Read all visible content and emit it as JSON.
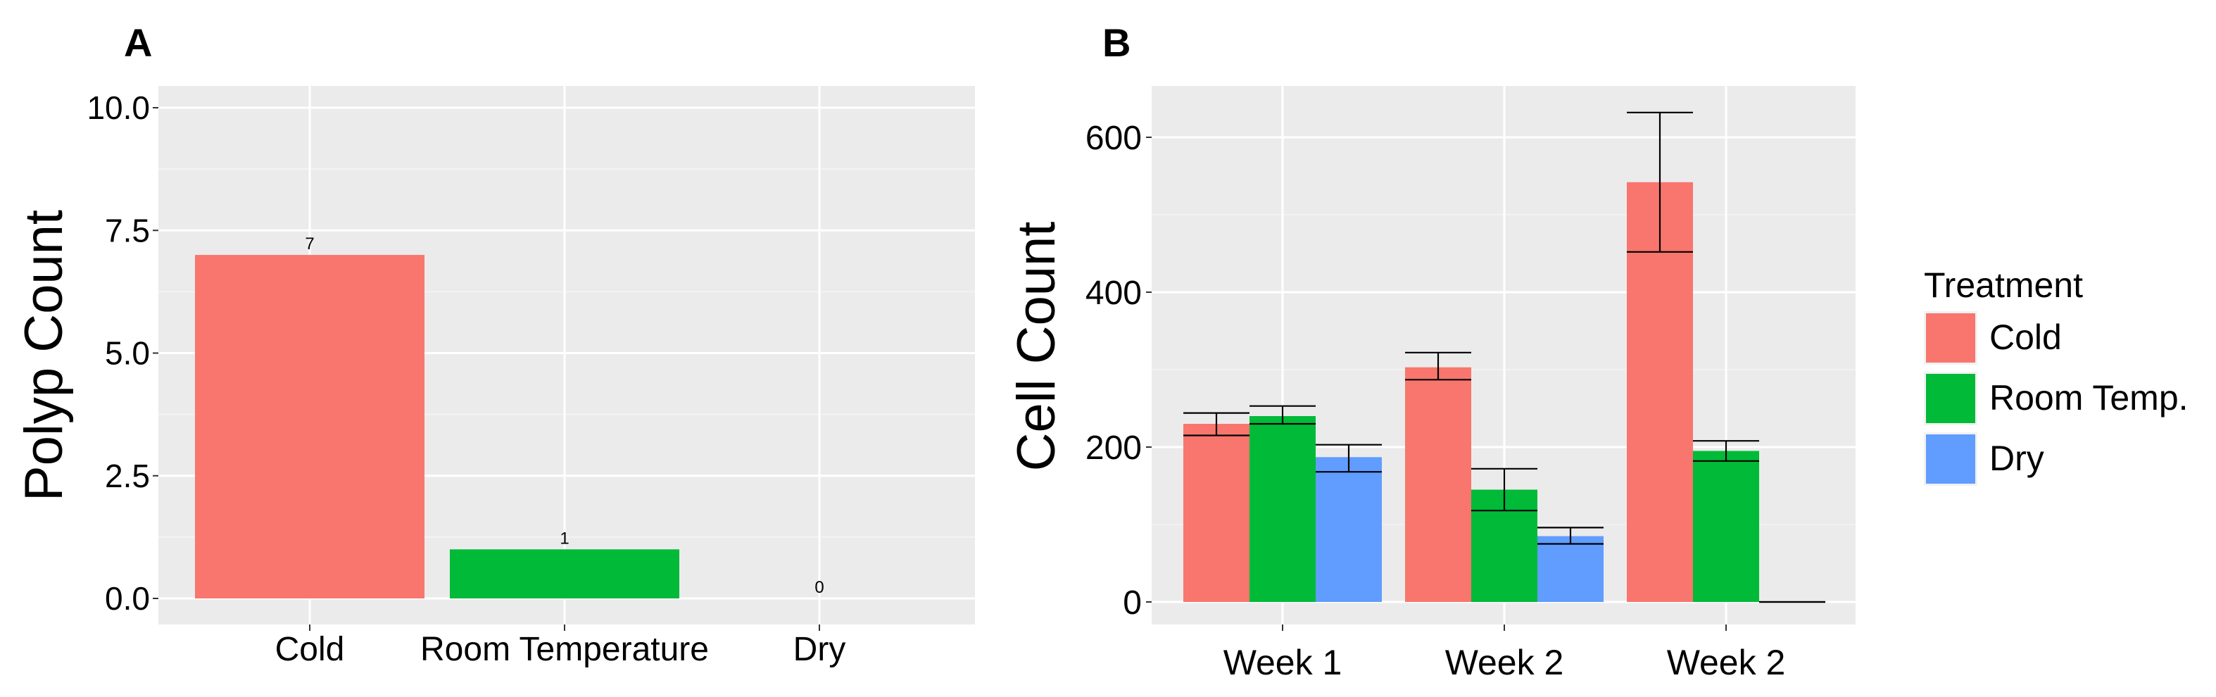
{
  "chart_data": [
    {
      "panel_label": "A",
      "type": "bar",
      "ylabel": "Polyp Count",
      "xlabel": "",
      "ylim": [
        0,
        10.5
      ],
      "yticks": [
        "0.0",
        "2.5",
        "5.0",
        "7.5",
        "10.0"
      ],
      "ytick_values": [
        0,
        2.5,
        5,
        7.5,
        10
      ],
      "grid": true,
      "categories": [
        "Cold",
        "Room Temperature",
        "Dry"
      ],
      "values": [
        7,
        1,
        0
      ],
      "data_labels": [
        "7",
        "1",
        "0"
      ],
      "colors": [
        "#F8766D",
        "#00BA38",
        "#619CFF"
      ]
    },
    {
      "panel_label": "B",
      "type": "bar",
      "ylabel": "Cell Count",
      "xlabel": "",
      "ylim": [
        0,
        665
      ],
      "yticks": [
        "0",
        "200",
        "400",
        "600"
      ],
      "ytick_values": [
        0,
        200,
        400,
        600
      ],
      "grid": true,
      "categories": [
        "Week 1",
        "Week 2",
        "Week 2"
      ],
      "legend": {
        "title": "Treatment",
        "position": "right"
      },
      "series": [
        {
          "name": "Cold",
          "color": "#F8766D",
          "values": [
            230,
            303,
            542
          ],
          "error_low": [
            215,
            287,
            452
          ],
          "error_high": [
            244,
            322,
            632
          ]
        },
        {
          "name": "Room Temp.",
          "color": "#00BA38",
          "values": [
            240,
            145,
            195
          ],
          "error_low": [
            230,
            118,
            182
          ],
          "error_high": [
            253,
            172,
            208
          ]
        },
        {
          "name": "Dry",
          "color": "#619CFF",
          "values": [
            187,
            85,
            0
          ],
          "error_low": [
            168,
            75,
            0
          ],
          "error_high": [
            203,
            96,
            0
          ]
        }
      ]
    }
  ]
}
